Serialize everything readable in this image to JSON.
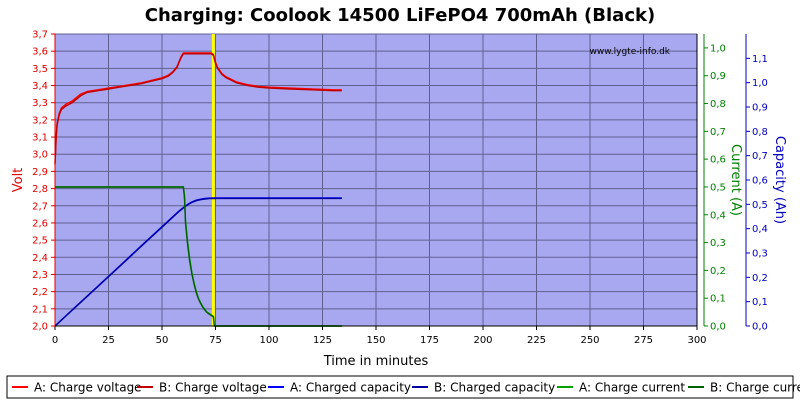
{
  "chart_data": {
    "type": "line",
    "title": "Charging: Coolook 14500 LiFePO4 700mAh (Black)",
    "watermark": "www.lygte-info.dk",
    "xlabel": "Time in minutes",
    "xlim": [
      0,
      300
    ],
    "xticks": [
      0,
      25,
      50,
      75,
      100,
      125,
      150,
      175,
      200,
      225,
      250,
      275,
      300
    ],
    "y_axes": {
      "voltage": {
        "label": "Volt",
        "color": "#e00000",
        "lim": [
          2.0,
          3.7
        ],
        "ticks": [
          "2,0",
          "2,1",
          "2,2",
          "2,3",
          "2,4",
          "2,5",
          "2,6",
          "2,7",
          "2,8",
          "2,9",
          "3,0",
          "3,1",
          "3,2",
          "3,3",
          "3,4",
          "3,5",
          "3,6",
          "3,7"
        ]
      },
      "current": {
        "label": "Current (A)",
        "color": "#008000",
        "lim": [
          0,
          1.05
        ],
        "ticks": [
          "0,0",
          "0,1",
          "0,2",
          "0,3",
          "0,4",
          "0,5",
          "0,6",
          "0,7",
          "0,8",
          "0,9",
          "1,0"
        ]
      },
      "capacity": {
        "label": "Capacity (Ah)",
        "color": "#0000c0",
        "lim": [
          0,
          1.2
        ],
        "ticks": [
          "0,0",
          "0,1",
          "0,2",
          "0,3",
          "0,4",
          "0,5",
          "0,6",
          "0,7",
          "0,8",
          "0,9",
          "1,0",
          "1,1"
        ]
      }
    },
    "marker_x": 74,
    "marker_color": "#ffff00",
    "plot_background": "#a8a8f0",
    "grid": true,
    "series": [
      {
        "name": "A: Charge voltage",
        "axis": "voltage",
        "color": "#ff0000",
        "x": [
          0,
          0.5,
          1,
          2,
          3,
          5,
          8,
          10,
          12,
          15,
          20,
          25,
          30,
          35,
          40,
          45,
          50,
          53,
          55,
          57,
          58,
          59,
          60,
          65,
          70,
          73,
          74,
          75,
          76,
          78,
          80,
          85,
          90,
          95,
          100,
          110,
          120,
          130,
          134
        ],
        "y": [
          2.95,
          3.1,
          3.18,
          3.24,
          3.27,
          3.29,
          3.31,
          3.33,
          3.35,
          3.365,
          3.375,
          3.385,
          3.395,
          3.405,
          3.415,
          3.43,
          3.445,
          3.46,
          3.48,
          3.51,
          3.54,
          3.57,
          3.59,
          3.59,
          3.59,
          3.59,
          3.58,
          3.535,
          3.505,
          3.47,
          3.45,
          3.42,
          3.405,
          3.395,
          3.39,
          3.385,
          3.38,
          3.375,
          3.375
        ]
      },
      {
        "name": "B: Charge voltage",
        "axis": "voltage",
        "color": "#c00000",
        "x": [
          0,
          0.5,
          1,
          2,
          3,
          5,
          8,
          10,
          12,
          15,
          20,
          25,
          30,
          35,
          40,
          45,
          50,
          53,
          55,
          57,
          58,
          59,
          60,
          65,
          70,
          73,
          74,
          75,
          76,
          78,
          80,
          85,
          90,
          95,
          100,
          110,
          120,
          130,
          134
        ],
        "y": [
          2.94,
          3.09,
          3.17,
          3.23,
          3.26,
          3.28,
          3.3,
          3.32,
          3.34,
          3.36,
          3.37,
          3.38,
          3.39,
          3.4,
          3.41,
          3.425,
          3.44,
          3.455,
          3.475,
          3.505,
          3.535,
          3.565,
          3.585,
          3.585,
          3.585,
          3.585,
          3.575,
          3.53,
          3.5,
          3.465,
          3.445,
          3.415,
          3.4,
          3.39,
          3.385,
          3.38,
          3.375,
          3.37,
          3.37
        ]
      },
      {
        "name": "A: Charged capacity",
        "axis": "capacity",
        "color": "#0000ff",
        "x": [
          0,
          10,
          20,
          30,
          40,
          50,
          58,
          60,
          62,
          64,
          66,
          68,
          70,
          72,
          74,
          76,
          80,
          90,
          100,
          120,
          134
        ],
        "y": [
          0.0,
          0.082,
          0.163,
          0.245,
          0.327,
          0.408,
          0.473,
          0.487,
          0.5,
          0.51,
          0.517,
          0.521,
          0.524,
          0.5255,
          0.526,
          0.5265,
          0.5265,
          0.5265,
          0.5265,
          0.5265,
          0.5265
        ]
      },
      {
        "name": "B: Charged capacity",
        "axis": "capacity",
        "color": "#0000a0",
        "x": [
          0,
          10,
          20,
          30,
          40,
          50,
          58,
          60,
          62,
          64,
          66,
          68,
          70,
          72,
          74,
          76,
          80,
          90,
          100,
          120,
          134
        ],
        "y": [
          0.0,
          0.081,
          0.162,
          0.243,
          0.325,
          0.406,
          0.471,
          0.485,
          0.498,
          0.508,
          0.515,
          0.519,
          0.522,
          0.5235,
          0.524,
          0.5245,
          0.5245,
          0.5245,
          0.5245,
          0.5245,
          0.5245
        ]
      },
      {
        "name": "A: Charge current",
        "axis": "current",
        "color": "#00a000",
        "x": [
          0,
          59,
          60,
          60.5,
          61,
          62,
          63,
          64,
          65,
          66,
          67,
          68,
          69,
          70,
          71,
          72,
          73,
          74,
          74.5,
          75,
          134
        ],
        "y": [
          0.5,
          0.5,
          0.5,
          0.47,
          0.38,
          0.3,
          0.24,
          0.19,
          0.155,
          0.125,
          0.1,
          0.085,
          0.07,
          0.06,
          0.05,
          0.045,
          0.04,
          0.035,
          0.0,
          0.0,
          0.0
        ]
      },
      {
        "name": "B: Charge current",
        "axis": "current",
        "color": "#006000",
        "x": [
          0,
          59,
          60,
          60.5,
          61,
          62,
          63,
          64,
          65,
          66,
          67,
          68,
          69,
          70,
          71,
          72,
          73,
          74,
          74.5,
          75,
          134
        ],
        "y": [
          0.5,
          0.5,
          0.5,
          0.46,
          0.37,
          0.29,
          0.23,
          0.185,
          0.15,
          0.12,
          0.098,
          0.082,
          0.068,
          0.058,
          0.049,
          0.043,
          0.038,
          0.033,
          0.0,
          0.0,
          0.0
        ]
      }
    ],
    "legend": {
      "placement": "bottom",
      "entries": [
        {
          "label": "A: Charge voltage",
          "color": "#ff0000"
        },
        {
          "label": "B: Charge voltage",
          "color": "#c00000"
        },
        {
          "label": "A: Charged capacity",
          "color": "#0000ff"
        },
        {
          "label": "B: Charged capacity",
          "color": "#0000a0"
        },
        {
          "label": "A: Charge current",
          "color": "#00a000"
        },
        {
          "label": "B: Charge current",
          "color": "#006000"
        }
      ]
    }
  }
}
